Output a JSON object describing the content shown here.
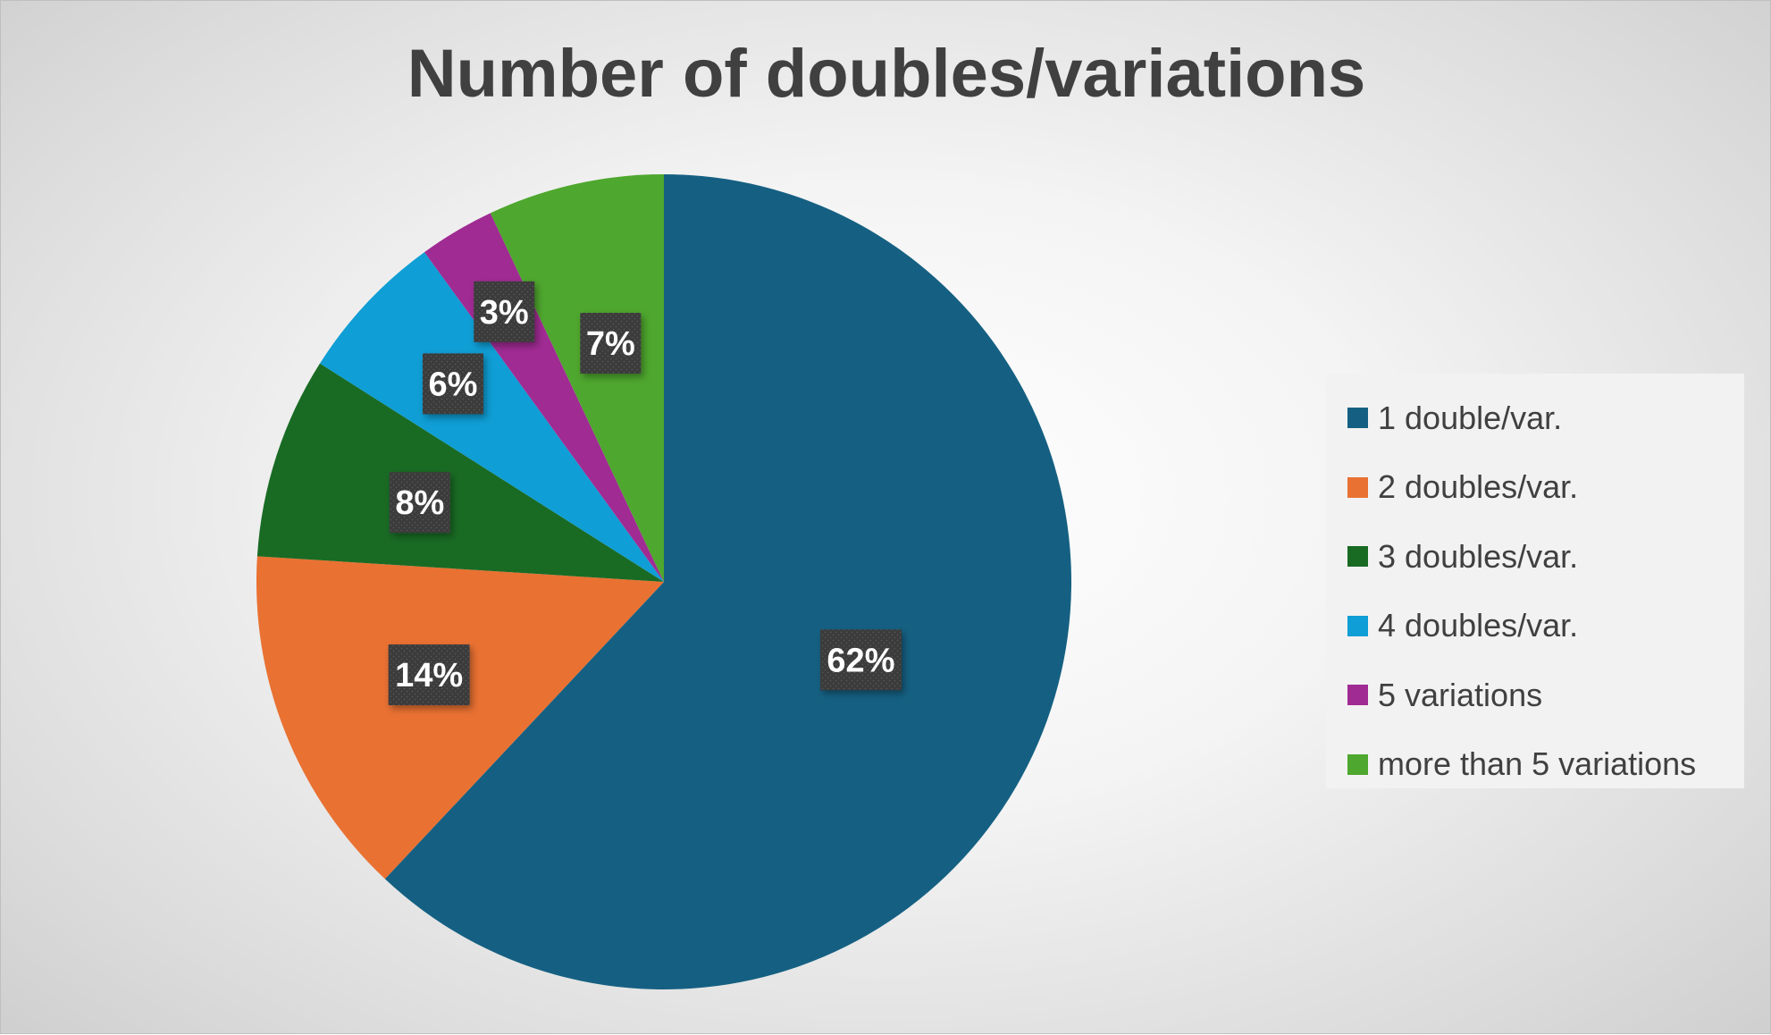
{
  "chart_data": {
    "type": "pie",
    "title": "Number of doubles/variations",
    "categories": [
      "1 double/var.",
      "2 doubles/var.",
      "3 doubles/var.",
      "4 doubles/var.",
      "5 variations",
      "more than 5 variations"
    ],
    "values": [
      62,
      14,
      8,
      6,
      3,
      7
    ],
    "data_labels": [
      "62%",
      "14%",
      "8%",
      "6%",
      "3%",
      "7%"
    ],
    "colors": [
      "#156082",
      "#E97132",
      "#196B24",
      "#0F9ED5",
      "#A02B93",
      "#4EA72E"
    ],
    "start_angle_deg": 0,
    "direction": "clockwise",
    "legend_position": "right"
  }
}
